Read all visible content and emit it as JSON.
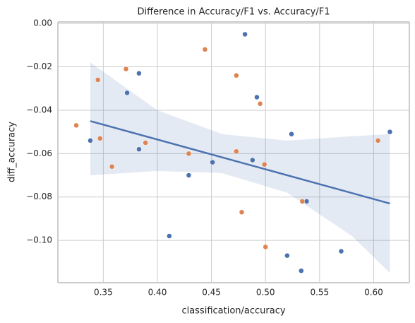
{
  "chart_data": {
    "type": "scatter",
    "title": "Difference in Accuracy/F1 vs. Accuracy/F1",
    "x_label": "classification/accuracy",
    "y_label": "diff_accuracy",
    "xlim": [
      0.308,
      0.633
    ],
    "ylim": [
      -0.1195,
      0.0007
    ],
    "xticks": [
      0.35,
      {
        "value": 0.4,
        "label": "0.40"
      },
      0.45,
      {
        "value": 0.5,
        "label": "0.50"
      },
      0.55,
      {
        "value": 0.6,
        "label": "0.60"
      }
    ],
    "yticks": [
      {
        "value": 0,
        "label": "0.00"
      },
      {
        "value": -0.02,
        "label": "−0.02"
      },
      {
        "value": -0.04,
        "label": "−0.04"
      },
      {
        "value": -0.06,
        "label": "−0.06"
      },
      {
        "value": -0.08,
        "label": "−0.08"
      },
      {
        "value": -0.1,
        "label": "−0.10"
      }
    ],
    "grid": true,
    "series": [
      {
        "color": "#4c72b0",
        "x": [
          0.338,
          0.372,
          0.383,
          0.383,
          0.411,
          0.429,
          0.451,
          0.481,
          0.488,
          0.492,
          0.52,
          0.524,
          0.533,
          0.538,
          0.57,
          0.615
        ],
        "values": [
          -0.054,
          -0.032,
          -0.023,
          -0.058,
          -0.098,
          -0.07,
          -0.064,
          -0.005,
          -0.063,
          -0.034,
          -0.107,
          -0.051,
          -0.114,
          -0.082,
          -0.105,
          -0.05
        ]
      },
      {
        "color": "#dd8452",
        "x": [
          0.325,
          0.345,
          0.347,
          0.358,
          0.371,
          0.389,
          0.429,
          0.444,
          0.473,
          0.473,
          0.478,
          0.495,
          0.499,
          0.5,
          0.534,
          0.604
        ],
        "values": [
          -0.047,
          -0.026,
          -0.053,
          -0.066,
          -0.021,
          -0.055,
          -0.06,
          -0.012,
          -0.024,
          -0.059,
          -0.087,
          -0.037,
          -0.065,
          -0.103,
          -0.082,
          -0.054
        ]
      }
    ],
    "fit": {
      "color": "#4c72b0",
      "x": [
        0.338,
        0.615
      ],
      "values": [
        -0.045,
        -0.083
      ],
      "band_x": [
        0.338,
        0.4,
        0.46,
        0.52,
        0.58,
        0.615
      ],
      "band_upper": [
        -0.018,
        -0.04,
        -0.051,
        -0.054,
        -0.052,
        -0.051
      ],
      "band_lower": [
        -0.07,
        -0.068,
        -0.069,
        -0.078,
        -0.098,
        -0.115
      ]
    }
  }
}
